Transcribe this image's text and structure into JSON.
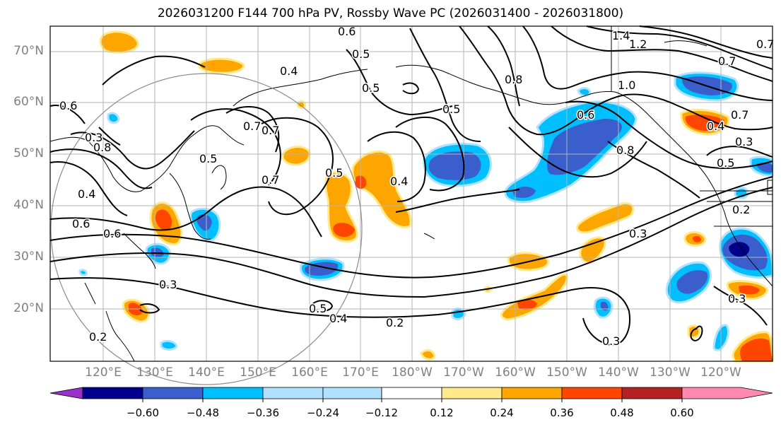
{
  "title": "2026031200 F144 700 hPa PV, Rossby Wave PC (2026031400 - 2026031800)",
  "latitude_labels": [
    "70°N",
    "60°N",
    "50°N",
    "40°N",
    "30°N",
    "20°N"
  ],
  "longitude_labels": [
    "120°E",
    "130°E",
    "140°E",
    "150°E",
    "160°E",
    "170°E",
    "180°W",
    "170°W",
    "160°W",
    "150°W",
    "140°W",
    "130°W",
    "120°W"
  ],
  "colorbar": {
    "ticks": [
      "−0.60",
      "−0.48",
      "−0.36",
      "−0.24",
      "−0.12",
      "0.12",
      "0.24",
      "0.36",
      "0.48",
      "0.60"
    ],
    "colors": [
      "#9932cc",
      "#00008b",
      "#3a5fcd",
      "#00bfff",
      "#b0e2ff",
      "#ffffff",
      "#ffe98a",
      "#ffa500",
      "#ff4500",
      "#b22222",
      "#ff89b0"
    ]
  },
  "contour_labels": [
    "1.4",
    "1.2",
    "0.6",
    "0.5",
    "0.4",
    "0.8",
    "1.0",
    "0.7",
    "0.6",
    "0.7",
    "0.5",
    "0.7",
    "0.7",
    "0.6",
    "0.4",
    "0.5",
    "0.5",
    "0.6",
    "0.3",
    "0.4",
    "0.3",
    "0.2",
    "0.5",
    "0.4",
    "0.2",
    "0.3",
    "0.3",
    "0.3",
    "0.2",
    "0.3",
    "0.8",
    "0.4",
    "0.5",
    "0.7",
    "0.6",
    "0.5",
    "0.8",
    "0.7"
  ],
  "colors": {
    "lightblue": "#00bfff",
    "blue": "#3a5fcd",
    "darkblue": "#00008b",
    "orange": "#ffa500",
    "redorange": "#ff4500",
    "yellow": "#ffe98a"
  }
}
